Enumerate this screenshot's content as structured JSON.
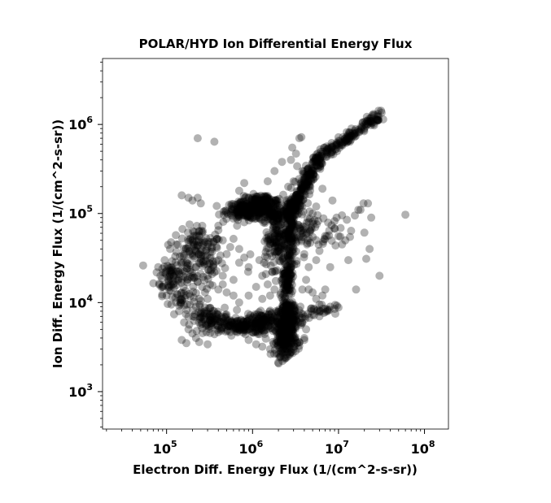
{
  "chart_data": {
    "type": "scatter",
    "title": "POLAR/HYD  Ion Differential Energy Flux",
    "xlabel": "Electron Diff. Energy Flux (1/(cm^2-s-sr))",
    "ylabel": "Ion Diff. Energy Flux (1/(cm^2-s-sr))",
    "x_scale": "log",
    "y_scale": "log",
    "xlim": [
      18000,
      190000000
    ],
    "ylim": [
      380,
      5500000
    ],
    "x_ticks": [
      {
        "value": 100000,
        "base": "10",
        "exp": "5"
      },
      {
        "value": 1000000,
        "base": "10",
        "exp": "6"
      },
      {
        "value": 10000000,
        "base": "10",
        "exp": "7"
      },
      {
        "value": 100000000,
        "base": "10",
        "exp": "8"
      }
    ],
    "y_ticks": [
      {
        "value": 1000,
        "base": "10",
        "exp": "3"
      },
      {
        "value": 10000,
        "base": "10",
        "exp": "4"
      },
      {
        "value": 100000,
        "base": "10",
        "exp": "5"
      },
      {
        "value": 1000000,
        "base": "10",
        "exp": "6"
      }
    ],
    "grid": false,
    "marker_color": "#000000",
    "marker_opacity": 0.3,
    "series": [
      {
        "points": [
          [
            230000,
            700000
          ],
          [
            360000,
            640000
          ],
          [
            60000000,
            97000
          ],
          [
            30000000,
            20000
          ],
          [
            21000000,
            31000
          ],
          [
            16000000,
            14000
          ],
          [
            22000000,
            130000
          ],
          [
            24000000,
            90000
          ],
          [
            20000000,
            61000
          ],
          [
            23000000,
            40000
          ],
          [
            7000000,
            56000
          ],
          [
            9000000,
            68000
          ],
          [
            12000000,
            50000
          ],
          [
            14000000,
            64000
          ],
          [
            10500000,
            55000
          ],
          [
            13000000,
            30000
          ],
          [
            8000000,
            25000
          ],
          [
            11000000,
            45000
          ],
          [
            5500000,
            120000
          ],
          [
            6500000,
            190000
          ],
          [
            18000000,
            110000
          ],
          [
            15500000,
            95000
          ],
          [
            17000000,
            110000
          ],
          [
            19500000,
            130000
          ],
          [
            12500000,
            85000
          ],
          [
            9500000,
            90000
          ],
          [
            8500000,
            140000
          ],
          [
            8000000,
            9000
          ],
          [
            9000000,
            8500
          ],
          [
            10000000,
            8800
          ],
          [
            6000000,
            9500
          ],
          [
            4000000,
            4000
          ],
          [
            3500000,
            3600
          ],
          [
            2800000,
            3000
          ],
          [
            2500000,
            2600
          ],
          [
            2200000,
            2800
          ],
          [
            800000,
            220000
          ],
          [
            700000,
            180000
          ],
          [
            1500000,
            230000
          ],
          [
            1800000,
            300000
          ],
          [
            2200000,
            380000
          ],
          [
            2800000,
            400000
          ],
          [
            3300000,
            340000
          ],
          [
            3800000,
            300000
          ],
          [
            3500000,
            700000
          ],
          [
            3700000,
            720000
          ],
          [
            2900000,
            550000
          ],
          [
            3200000,
            470000
          ],
          [
            2600000,
            200000
          ],
          [
            3000000,
            230000
          ],
          [
            180000,
            150000
          ],
          [
            200000,
            140000
          ],
          [
            230000,
            150000
          ],
          [
            150000,
            160000
          ],
          [
            250000,
            130000
          ],
          [
            130000,
            45000
          ],
          [
            110000,
            40000
          ],
          [
            95000,
            30000
          ],
          [
            85000,
            20000
          ],
          [
            80000,
            25000
          ],
          [
            90000,
            15000
          ],
          [
            100000,
            12000
          ],
          [
            140000,
            8000
          ],
          [
            160000,
            6000
          ],
          [
            180000,
            5000
          ],
          [
            200000,
            4500
          ],
          [
            150000,
            3800
          ],
          [
            170000,
            3500
          ],
          [
            220000,
            4000
          ],
          [
            240000,
            3600
          ],
          [
            300000,
            3400
          ],
          [
            900000,
            3800
          ],
          [
            1100000,
            3400
          ],
          [
            1300000,
            3200
          ],
          [
            1600000,
            3000
          ],
          [
            1900000,
            2700
          ],
          [
            2100000,
            2500
          ],
          [
            2400000,
            2400
          ],
          [
            2700000,
            2600
          ],
          [
            3000000,
            3000
          ],
          [
            3300000,
            3500
          ],
          [
            4000000,
            3800
          ],
          [
            700000,
            40000
          ],
          [
            500000,
            35000
          ],
          [
            400000,
            30000
          ],
          [
            350000,
            25000
          ],
          [
            300000,
            20000
          ],
          [
            450000,
            20000
          ],
          [
            600000,
            18000
          ],
          [
            900000,
            25000
          ],
          [
            1200000,
            30000
          ],
          [
            1400000,
            33000
          ],
          [
            1600000,
            36000
          ],
          [
            2000000,
            38000
          ],
          [
            1300000,
            20000
          ],
          [
            1700000,
            22000
          ],
          [
            1500000,
            16000
          ],
          [
            400000,
            65000
          ],
          [
            450000,
            50000
          ],
          [
            350000,
            48000
          ],
          [
            550000,
            42000
          ],
          [
            600000,
            52000
          ],
          [
            700000,
            28000
          ],
          [
            800000,
            32000
          ],
          [
            3500000,
            55000
          ],
          [
            3800000,
            65000
          ],
          [
            4200000,
            72000
          ],
          [
            4500000,
            80000
          ],
          [
            5000000,
            100000
          ],
          [
            4800000,
            70000
          ],
          [
            4300000,
            45000
          ],
          [
            4000000,
            35000
          ],
          [
            5500000,
            30000
          ],
          [
            6000000,
            38000
          ],
          [
            4500000,
            25000
          ],
          [
            4200000,
            18000
          ],
          [
            3800000,
            14000
          ],
          [
            4500000,
            14000
          ],
          [
            5000000,
            13000
          ],
          [
            5500000,
            11000
          ],
          [
            6500000,
            12000
          ],
          [
            7000000,
            14000
          ],
          [
            3600000,
            9000
          ],
          [
            4800000,
            8000
          ],
          [
            5200000,
            7200
          ],
          [
            6000000,
            7000
          ],
          [
            7500000,
            8000
          ],
          [
            3800000,
            6000
          ],
          [
            4200000,
            5000
          ],
          [
            700000,
            10000
          ],
          [
            900000,
            12000
          ],
          [
            1100000,
            15000
          ],
          [
            1300000,
            11000
          ],
          [
            1600000,
            12000
          ],
          [
            1800000,
            14000
          ],
          [
            600000,
            12000
          ],
          [
            500000,
            13000
          ],
          [
            400000,
            14000
          ],
          [
            450000,
            16000
          ],
          [
            300000,
            11000
          ],
          [
            280000,
            13000
          ],
          [
            320000,
            16000
          ],
          [
            260000,
            15000
          ],
          [
            230000,
            17000
          ],
          [
            210000,
            19000
          ],
          [
            190000,
            22000
          ],
          [
            170000,
            28000
          ],
          [
            160000,
            35000
          ],
          [
            220000,
            9000
          ],
          [
            240000,
            11000
          ]
        ],
        "clusters": [
          {
            "cx": 230000,
            "cy": 30000,
            "sx": 0.15,
            "sy": 0.16,
            "n": 130
          },
          {
            "cx": 110000,
            "cy": 20000,
            "sx": 0.09,
            "sy": 0.1,
            "n": 60
          },
          {
            "cx": 150000,
            "cy": 11000,
            "sx": 0.08,
            "sy": 0.08,
            "n": 35
          },
          {
            "cx": 250000,
            "cy": 55000,
            "sx": 0.1,
            "sy": 0.07,
            "n": 30
          },
          {
            "cx": 900000,
            "cy": 108000,
            "sx": 0.13,
            "sy": 0.05,
            "n": 240
          },
          {
            "cx": 1300000,
            "cy": 135000,
            "sx": 0.12,
            "sy": 0.04,
            "n": 110
          },
          {
            "cx": 1800000,
            "cy": 95000,
            "sx": 0.09,
            "sy": 0.05,
            "n": 70
          },
          {
            "cx": 700000,
            "cy": 5500,
            "sx": 0.2,
            "sy": 0.05,
            "n": 200
          },
          {
            "cx": 1500000,
            "cy": 6500,
            "sx": 0.12,
            "sy": 0.05,
            "n": 80
          },
          {
            "cx": 300000,
            "cy": 7000,
            "sx": 0.13,
            "sy": 0.06,
            "n": 70
          },
          {
            "cx": 2400000,
            "cy": 3800,
            "sx": 0.06,
            "sy": 0.09,
            "n": 200
          },
          {
            "cx": 2600000,
            "cy": 6000,
            "sx": 0.05,
            "sy": 0.07,
            "n": 110
          },
          {
            "cx": 2500000,
            "cy": 8500,
            "sx": 0.04,
            "sy": 0.05,
            "n": 60
          },
          {
            "cx": 3200000,
            "cy": 7000,
            "sx": 0.1,
            "sy": 0.05,
            "n": 40
          },
          {
            "cx": 6500000,
            "cy": 8500,
            "sx": 0.08,
            "sy": 0.03,
            "n": 20
          },
          {
            "cx": 1800000,
            "cy": 35000,
            "sx": 0.12,
            "sy": 0.13,
            "n": 50
          },
          {
            "cx": 3200000,
            "cy": 65000,
            "sx": 0.12,
            "sy": 0.1,
            "n": 40
          },
          {
            "cx": 5500000,
            "cy": 60000,
            "sx": 0.15,
            "sy": 0.1,
            "n": 40
          }
        ],
        "paths": [
          {
            "from": [
              2500000,
              12000
            ],
            "to": [
              2700000,
              70000
            ],
            "n": 170,
            "jitter": 0.035
          },
          {
            "from": [
              2700000,
              70000
            ],
            "to": [
              3400000,
              160000
            ],
            "n": 90,
            "jitter": 0.04
          },
          {
            "from": [
              3400000,
              160000
            ],
            "to": [
              6000000,
              420000
            ],
            "n": 150,
            "jitter": 0.04
          },
          {
            "from": [
              6000000,
              420000
            ],
            "to": [
              30000000,
              1300000
            ],
            "n": 150,
            "jitter": 0.03
          },
          {
            "from": [
              1800000,
              38000
            ],
            "to": [
              2000000,
              80000
            ],
            "n": 60,
            "jitter": 0.05
          },
          {
            "from": [
              2200000,
              95000
            ],
            "to": [
              3300000,
              140000
            ],
            "n": 60,
            "jitter": 0.04
          }
        ]
      }
    ]
  }
}
